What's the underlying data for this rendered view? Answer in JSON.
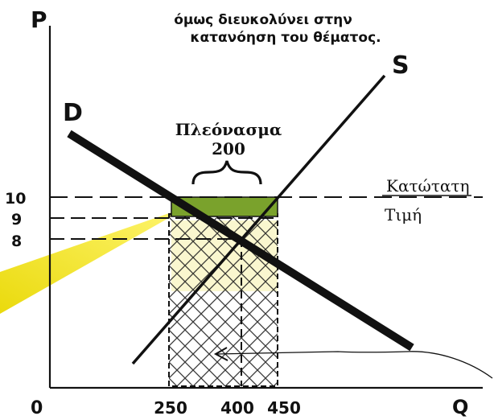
{
  "note": {
    "line1": "όμως διευκολύνει στην",
    "line2": "κατανόηση του θέματος."
  },
  "axes": {
    "y_label": "P",
    "x_label": "Q",
    "origin": "0"
  },
  "curves": {
    "demand_label": "D",
    "supply_label": "S"
  },
  "surplus": {
    "label": "Πλεόνασμα",
    "value": "200"
  },
  "price_floor": {
    "line1": "Κατώτατη",
    "line2": "Τιμή"
  },
  "ticks": {
    "p10": "10",
    "p9": "9",
    "p8": "8",
    "q250": "250",
    "q400": "400",
    "q450": "450"
  },
  "colors": {
    "surplus_fill": "#7aa22c",
    "highlight": "#f3ea1e",
    "ink": "#111111"
  }
}
